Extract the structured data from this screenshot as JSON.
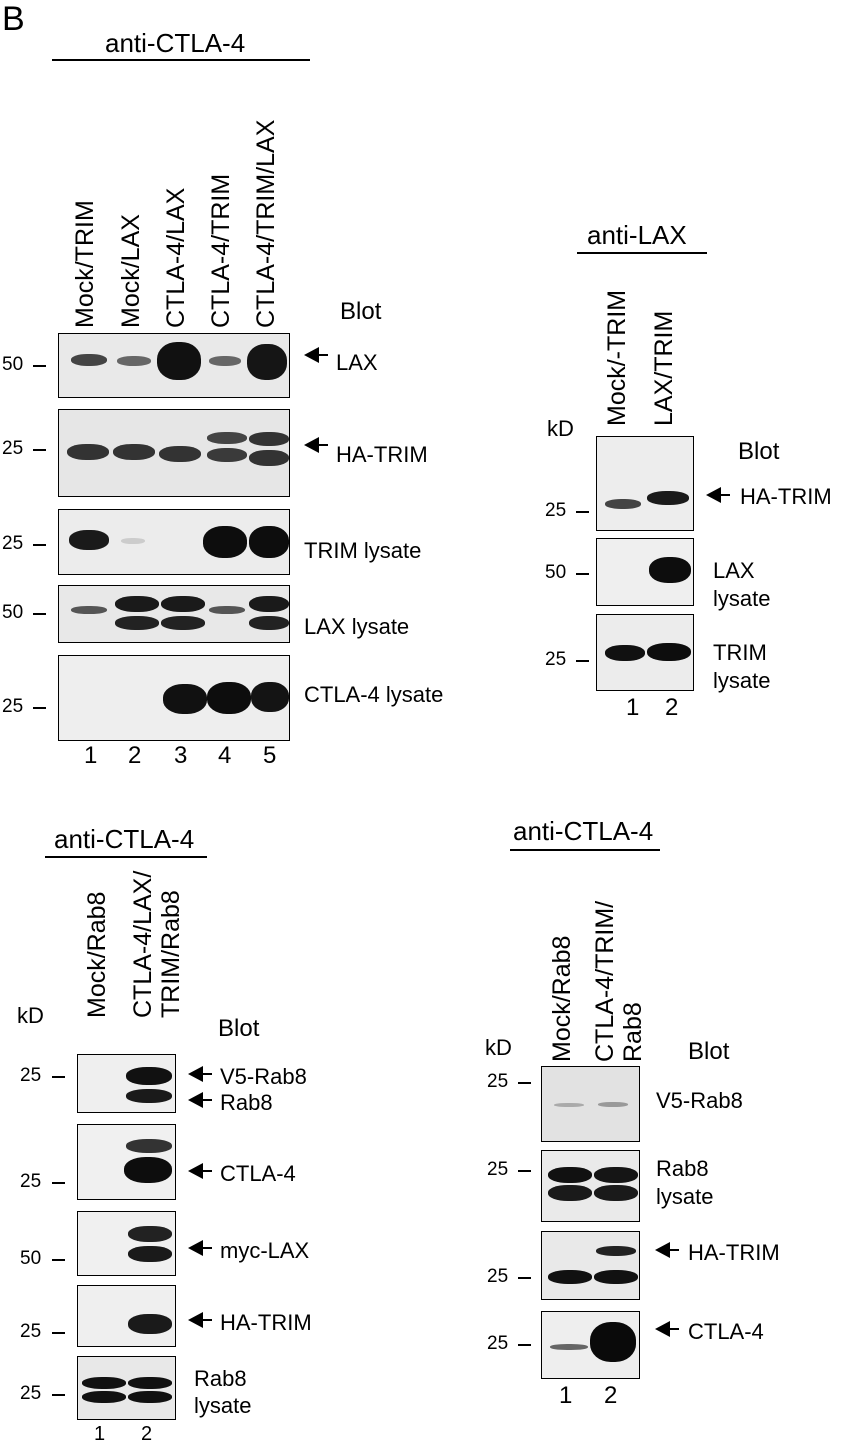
{
  "panel_letter": "B",
  "panel1": {
    "header": "anti-CTLA-4",
    "lanes": [
      "Mock/TRIM",
      "Mock/LAX",
      "CTLA-4/LAX",
      "CTLA-4/TRIM",
      "CTLA-4/TRIM/LAX"
    ],
    "blot_label": "Blot",
    "rows": [
      {
        "mw": "50",
        "label": "LAX"
      },
      {
        "mw": "25",
        "label": "HA-TRIM"
      },
      {
        "mw": "25",
        "label": "TRIM lysate"
      },
      {
        "mw": "50",
        "label": "LAX lysate"
      },
      {
        "mw": "25",
        "label": "CTLA-4 lysate"
      }
    ],
    "lane_numbers": [
      "1",
      "2",
      "3",
      "4",
      "5"
    ]
  },
  "panel2": {
    "header": "anti-LAX",
    "lanes": [
      "Mock/-TRIM",
      "LAX/TRIM"
    ],
    "kd": "kD",
    "blot_label": "Blot",
    "rows": [
      {
        "mw": "25",
        "label": "HA-TRIM"
      },
      {
        "mw": "50",
        "label": "LAX",
        "label2": "lysate"
      },
      {
        "mw": "25",
        "label": "TRIM",
        "label2": "lysate"
      }
    ],
    "lane_numbers": [
      "1",
      "2"
    ]
  },
  "panel3": {
    "header": "anti-CTLA-4",
    "lanes": [
      "Mock/Rab8",
      "CTLA-4/LAX/",
      "TRIM/Rab8"
    ],
    "kd": "kD",
    "blot_label": "Blot",
    "rows": [
      {
        "mw": "25",
        "label": "V5-Rab8",
        "label2": "Rab8"
      },
      {
        "mw": "25",
        "label": "CTLA-4"
      },
      {
        "mw": "50",
        "label": "myc-LAX"
      },
      {
        "mw": "25",
        "label": "HA-TRIM"
      },
      {
        "mw": "25",
        "label": "Rab8",
        "label2": "lysate"
      }
    ],
    "lane_numbers": [
      "1",
      "2"
    ]
  },
  "panel4": {
    "header": "anti-CTLA-4",
    "lanes": [
      "Mock/Rab8",
      "CTLA-4/TRIM/",
      "Rab8"
    ],
    "kd": "kD",
    "blot_label": "Blot",
    "rows": [
      {
        "mw": "25",
        "label": "V5-Rab8"
      },
      {
        "mw": "25",
        "label": "Rab8",
        "label2": "lysate"
      },
      {
        "mw": "25",
        "label": "HA-TRIM"
      },
      {
        "mw": "25",
        "label": "CTLA-4"
      }
    ],
    "lane_numbers": [
      "1",
      "2"
    ]
  }
}
